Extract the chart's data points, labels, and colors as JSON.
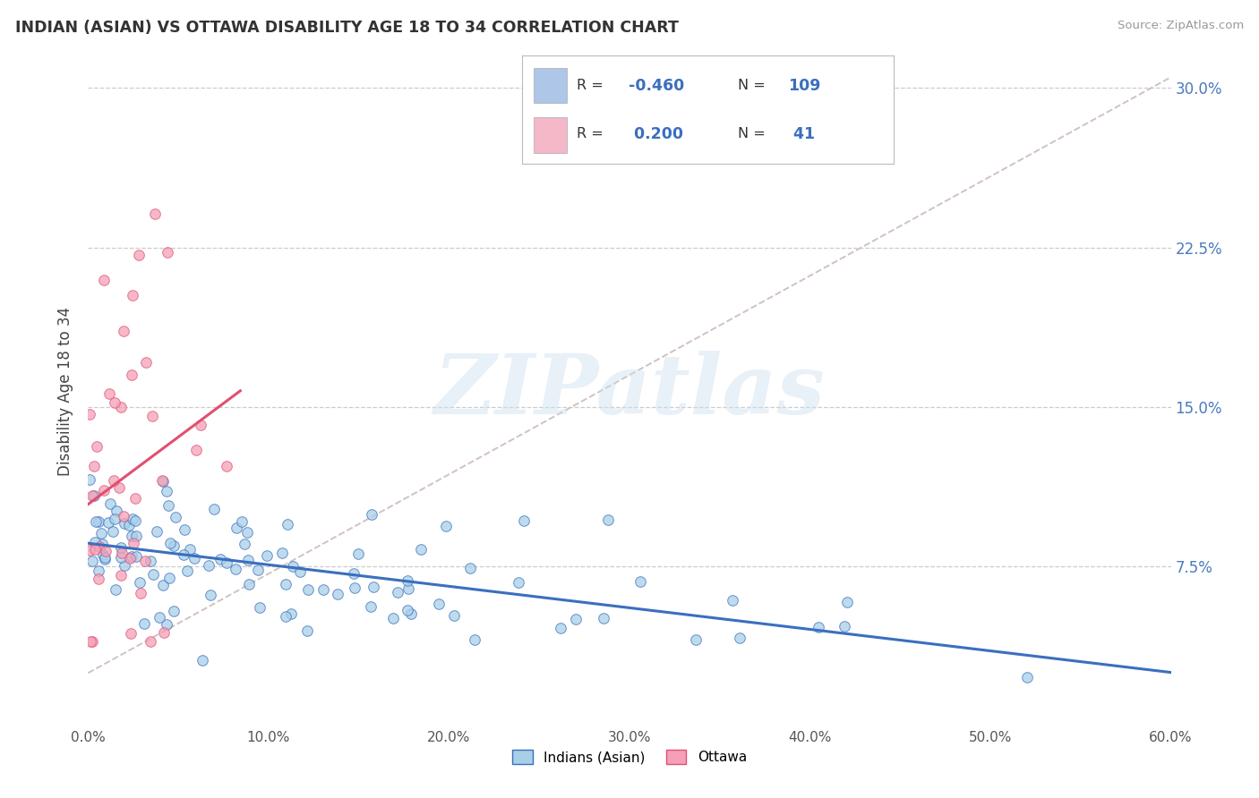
{
  "title": "INDIAN (ASIAN) VS OTTAWA DISABILITY AGE 18 TO 34 CORRELATION CHART",
  "source": "Source: ZipAtlas.com",
  "ylabel": "Disability Age 18 to 34",
  "xlim": [
    0.0,
    0.6
  ],
  "ylim": [
    0.0,
    0.315
  ],
  "xtick_labels": [
    "0.0%",
    "10.0%",
    "20.0%",
    "30.0%",
    "40.0%",
    "50.0%",
    "60.0%"
  ],
  "xtick_values": [
    0.0,
    0.1,
    0.2,
    0.3,
    0.4,
    0.5,
    0.6
  ],
  "ytick_labels": [
    "7.5%",
    "15.0%",
    "22.5%",
    "30.0%"
  ],
  "ytick_values": [
    0.075,
    0.15,
    0.225,
    0.3
  ],
  "watermark": "ZIPatlas",
  "blue_R": -0.46,
  "blue_N": 109,
  "pink_R": 0.2,
  "pink_N": 41,
  "blue_dot_color": "#a8cfe8",
  "pink_dot_color": "#f4a0b8",
  "blue_line_color": "#3a6fbf",
  "pink_line_color": "#e05070",
  "gray_dash_color": "#ccbbbb",
  "background_color": "#ffffff",
  "grid_color": "#cccccc",
  "title_color": "#333333",
  "axis_label_color": "#444444",
  "tick_color": "#555555",
  "right_ytick_color": "#4a7abf",
  "source_color": "#999999",
  "legend_blue_box": "#aec6e8",
  "legend_pink_box": "#f4b8c8",
  "legend_text_color": "#333333",
  "legend_value_color": "#3a6fbf"
}
